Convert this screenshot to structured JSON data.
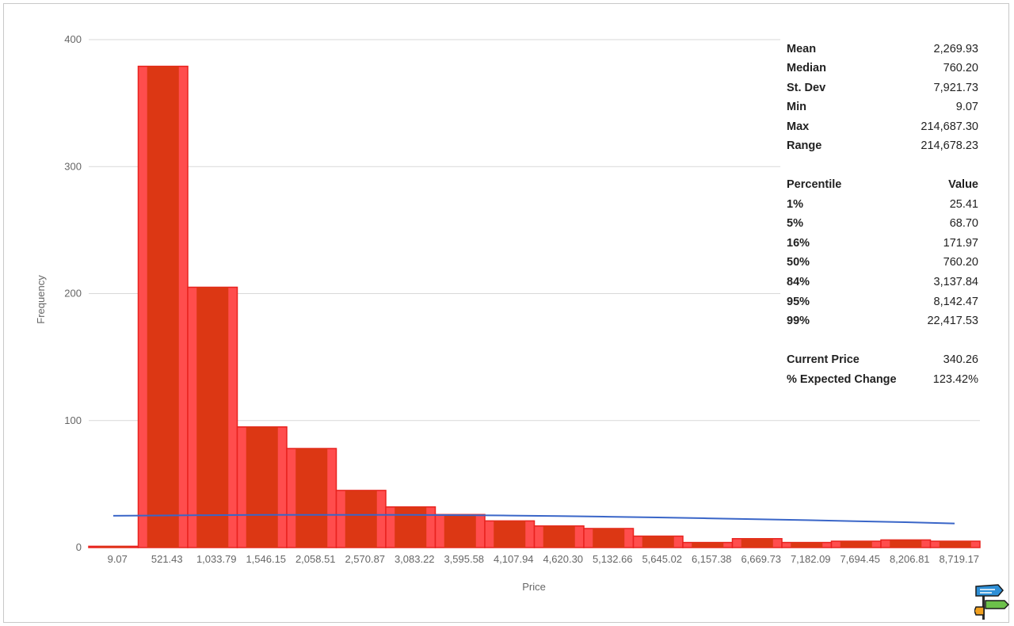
{
  "colors": {
    "bar_fill": "#ff4d4d",
    "bar_inner": "#dc3714",
    "bar_stroke": "#e8231f",
    "curve": "#3a66c8",
    "grid": "#d9d9d9",
    "axis_text": "#666666",
    "stat_text": "#222222"
  },
  "chart_data": {
    "type": "bar",
    "xlabel": "Price",
    "ylabel": "Frequency",
    "ylim": [
      0,
      400
    ],
    "yticks": [
      "0",
      "100",
      "200",
      "300",
      "400"
    ],
    "grid": true,
    "categories": [
      "9.07",
      "521.43",
      "1,033.79",
      "1,546.15",
      "2,058.51",
      "2,570.87",
      "3,083.22",
      "3,595.58",
      "4,107.94",
      "4,620.30",
      "5,132.66",
      "5,645.02",
      "6,157.38",
      "6,669.73",
      "7,182.09",
      "7,694.45",
      "8,206.81",
      "8,719.17"
    ],
    "values": [
      1,
      379,
      205,
      95,
      78,
      45,
      32,
      26,
      21,
      17,
      15,
      9,
      4,
      7,
      4,
      5,
      6,
      5
    ],
    "series": [
      {
        "name": "",
        "type": "bar",
        "values": [
          1,
          379,
          205,
          95,
          78,
          45,
          32,
          26,
          21,
          17,
          15,
          9,
          4,
          7,
          4,
          5,
          6,
          5
        ]
      },
      {
        "name": "",
        "type": "line",
        "values": [
          25,
          25.3,
          25.5,
          25.7,
          25.8,
          25.8,
          25.7,
          25.5,
          25.2,
          24.8,
          24.3,
          23.7,
          23,
          22.3,
          21.6,
          20.8,
          20,
          19
        ]
      }
    ]
  },
  "stats": [
    {
      "label": "Mean",
      "value": "2,269.93"
    },
    {
      "label": "Median",
      "value": "760.20"
    },
    {
      "label": "St. Dev",
      "value": "7,921.73"
    },
    {
      "label": "Min",
      "value": "9.07"
    },
    {
      "label": "Max",
      "value": "214,687.30"
    },
    {
      "label": "Range",
      "value": "214,678.23"
    }
  ],
  "percentile_header": {
    "label": "Percentile",
    "value": "Value"
  },
  "percentiles": [
    {
      "label": "1%",
      "value": "25.41"
    },
    {
      "label": "5%",
      "value": "68.70"
    },
    {
      "label": "16%",
      "value": "171.97"
    },
    {
      "label": "50%",
      "value": "760.20"
    },
    {
      "label": "84%",
      "value": "3,137.84"
    },
    {
      "label": "95%",
      "value": "8,142.47"
    },
    {
      "label": "99%",
      "value": "22,417.53"
    }
  ],
  "summary": [
    {
      "label": "Current Price",
      "value": "340.26"
    },
    {
      "label": "% Expected Change",
      "value": "123.42%"
    }
  ],
  "logo": {
    "icon": "signpost-icon"
  }
}
